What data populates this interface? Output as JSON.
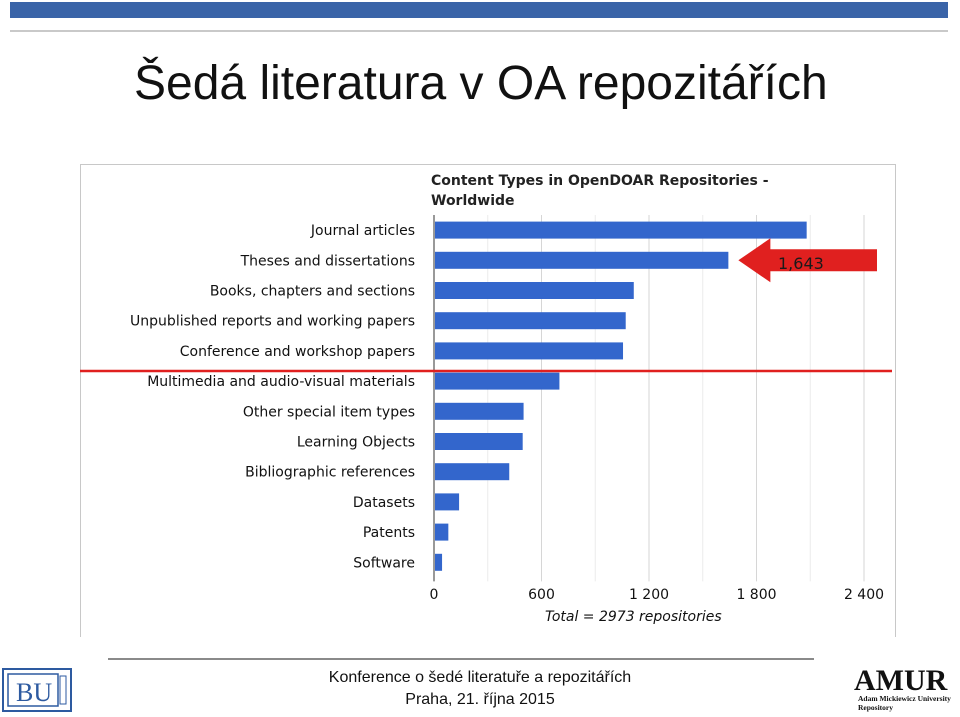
{
  "slide": {
    "title": "Šedá literatura v OA repozitářích",
    "footer_line1": "Konference o šedé literatuře a repozitářích",
    "footer_line2": "Praha, 21. října 2015"
  },
  "logos": {
    "left": "BU",
    "right_main": "AMUR",
    "right_sub1": "Adam Mickiewicz University",
    "right_sub2": "Repository"
  },
  "colors": {
    "bar": "#3366cc",
    "highlight": "#e0201f",
    "top_bar": "#3a64a8"
  },
  "callout": {
    "value_label": "1,643"
  },
  "chart_data": {
    "type": "bar",
    "orientation": "horizontal",
    "title_line1": "Content Types in OpenDOAR Repositories -",
    "title_line2": "Worldwide",
    "categories": [
      "Journal articles",
      "Theses and dissertations",
      "Books, chapters and sections",
      "Unpublished reports and working papers",
      "Conference and workshop papers",
      "Multimedia and audio-visual materials",
      "Other special item types",
      "Learning Objects",
      "Bibliographic references",
      "Datasets",
      "Patents",
      "Software"
    ],
    "values": [
      2080,
      1643,
      1115,
      1070,
      1055,
      700,
      500,
      495,
      420,
      140,
      80,
      45
    ],
    "xlim": [
      0,
      2400
    ],
    "xticks": [
      0,
      600,
      1200,
      1800,
      2400
    ],
    "xtick_labels": [
      "0",
      "600",
      "1 200",
      "1 800",
      "2 400"
    ],
    "total_label": "Total = 2973 repositories",
    "grid": true
  }
}
